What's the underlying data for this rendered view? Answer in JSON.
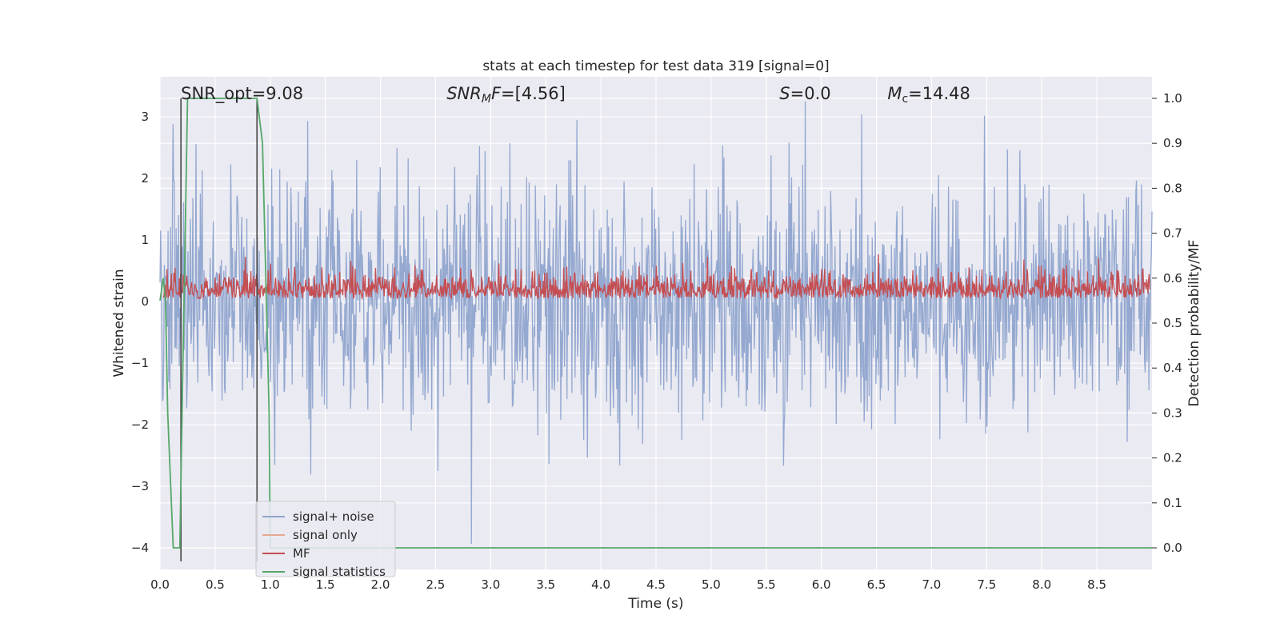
{
  "chart_data": {
    "type": "line",
    "title": "stats at each timestep for test data 319 [signal=0]",
    "xlabel": "Time (s)",
    "ylabel": "Whitened strain",
    "y2label": "Detection probability/MF",
    "xlim": [
      0.0,
      9.0
    ],
    "ylim": [
      -4.35,
      3.65
    ],
    "y2lim": [
      -0.048,
      1.048
    ],
    "grid": true,
    "legend_position": "lower-left",
    "xticks": [
      "0.0",
      "0.5",
      "1.0",
      "1.5",
      "2.0",
      "2.5",
      "3.0",
      "3.5",
      "4.0",
      "4.5",
      "5.0",
      "5.5",
      "6.0",
      "6.5",
      "7.0",
      "7.5",
      "8.0",
      "8.5"
    ],
    "yticks": [
      "−4",
      "−3",
      "−2",
      "−1",
      "0",
      "1",
      "2",
      "3"
    ],
    "y2ticks": [
      "0.0",
      "0.1",
      "0.2",
      "0.3",
      "0.4",
      "0.5",
      "0.6",
      "0.7",
      "0.8",
      "0.9",
      "1.0"
    ],
    "annotations": [
      {
        "html": "SNR_opt=9.08",
        "x": 0.19
      },
      {
        "html": "<tspan font-style='italic'>SNR</tspan><tspan font-style='italic' font-size='14' dy='4'>M</tspan><tspan font-style='italic' dy='-4'>F</tspan>=[4.56]",
        "x": 2.6
      },
      {
        "html": "<tspan font-style='italic'>S</tspan>=0.0",
        "x": 5.62
      },
      {
        "html": "<tspan font-style='italic'>M</tspan><tspan font-size='14' dy='4'>c</tspan><tspan dy='-4'>=14.48</tspan>",
        "x": 6.6
      }
    ],
    "vlines": [
      0.19,
      0.88
    ],
    "series": [
      {
        "name": "signal+ noise",
        "color": "#8fa4cd",
        "axis": "left",
        "x_range": [
          0,
          9.0
        ],
        "points": 1600,
        "amplitude": "approx ±3 with peaks near 3.2 and -4.0"
      },
      {
        "name": "signal only",
        "color": "#e8a890",
        "axis": "left",
        "values": []
      },
      {
        "name": "MF",
        "color": "#c44e52",
        "axis": "right",
        "x_range": [
          0.03,
          8.98
        ],
        "points": 1600,
        "level": "approx 0.55–0.67"
      },
      {
        "name": "signal statistics",
        "color": "#55a868",
        "axis": "right",
        "x": [
          0.0,
          0.03,
          0.05,
          0.07,
          0.12,
          0.18,
          0.2,
          0.25,
          0.88,
          0.93,
          0.99,
          1.0,
          1.5,
          9.0
        ],
        "values": [
          0.55,
          0.6,
          0.55,
          0.3,
          0.0,
          0.0,
          0.3,
          1.0,
          1.0,
          0.9,
          0.3,
          0.0,
          0.0,
          0.0
        ]
      }
    ]
  },
  "legend": {
    "items": [
      {
        "label": "signal+ noise",
        "color": "#8fa4cd"
      },
      {
        "label": "signal only",
        "color": "#e8a890"
      },
      {
        "label": "MF",
        "color": "#c44e52"
      },
      {
        "label": "signal statistics",
        "color": "#55a868"
      }
    ]
  }
}
